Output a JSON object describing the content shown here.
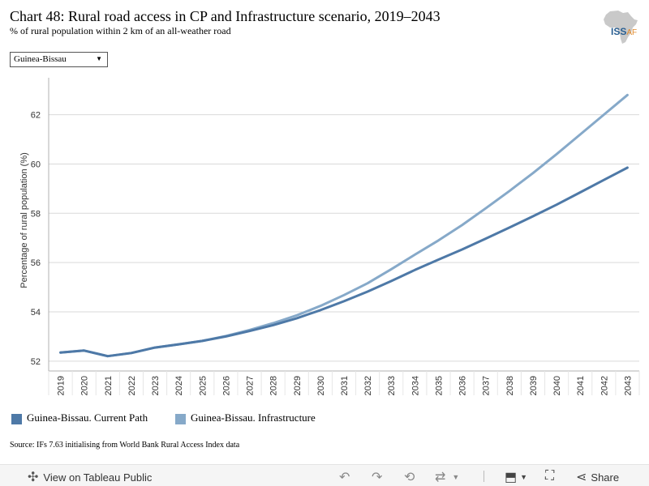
{
  "title": "Chart 48: Rural road access in CP and Infrastructure scenario, 2019–2043",
  "subtitle": "% of rural population within 2 km of an all-weather road",
  "logo": {
    "iss": "ISS",
    "africa": "AF"
  },
  "country_select": {
    "selected": "Guinea-Bissau"
  },
  "source": "Source: IFs 7.63 initialising from World Bank Rural Access Index data",
  "toolbar": {
    "view_label": "View on Tableau Public",
    "share_label": "Share",
    "icons": [
      "tableau-icon",
      "undo-icon",
      "redo-icon",
      "revert-icon",
      "refresh-icon",
      "download-icon",
      "fullscreen-icon",
      "share-icon"
    ]
  },
  "chart_data": {
    "type": "line",
    "title": "",
    "ylabel": "Percentage of rural population (%)",
    "xlabel": "",
    "ylim": [
      51.6,
      63.5
    ],
    "yticks": [
      52,
      54,
      56,
      58,
      60,
      62
    ],
    "grid": true,
    "legend_position": "bottom-left",
    "categories": [
      "2019",
      "2020",
      "2021",
      "2022",
      "2023",
      "2024",
      "2025",
      "2026",
      "2027",
      "2028",
      "2029",
      "2030",
      "2031",
      "2032",
      "2033",
      "2034",
      "2035",
      "2036",
      "2037",
      "2038",
      "2039",
      "2040",
      "2041",
      "2042",
      "2043"
    ],
    "series": [
      {
        "name": "Guinea-Bissau. Current Path",
        "color": "#4e79a7",
        "values": [
          52.35,
          52.43,
          52.2,
          52.33,
          52.55,
          52.68,
          52.82,
          53.0,
          53.22,
          53.46,
          53.74,
          54.07,
          54.43,
          54.82,
          55.25,
          55.7,
          56.12,
          56.53,
          56.97,
          57.42,
          57.88,
          58.35,
          58.85,
          59.35,
          59.85
        ]
      },
      {
        "name": "Guinea-Bissau. Infrastructure",
        "color": "#86a9c9",
        "values": [
          52.35,
          52.43,
          52.2,
          52.33,
          52.55,
          52.68,
          52.82,
          53.02,
          53.26,
          53.54,
          53.86,
          54.24,
          54.68,
          55.16,
          55.73,
          56.32,
          56.9,
          57.52,
          58.2,
          58.9,
          59.63,
          60.4,
          61.2,
          62.0,
          62.8
        ]
      }
    ]
  }
}
